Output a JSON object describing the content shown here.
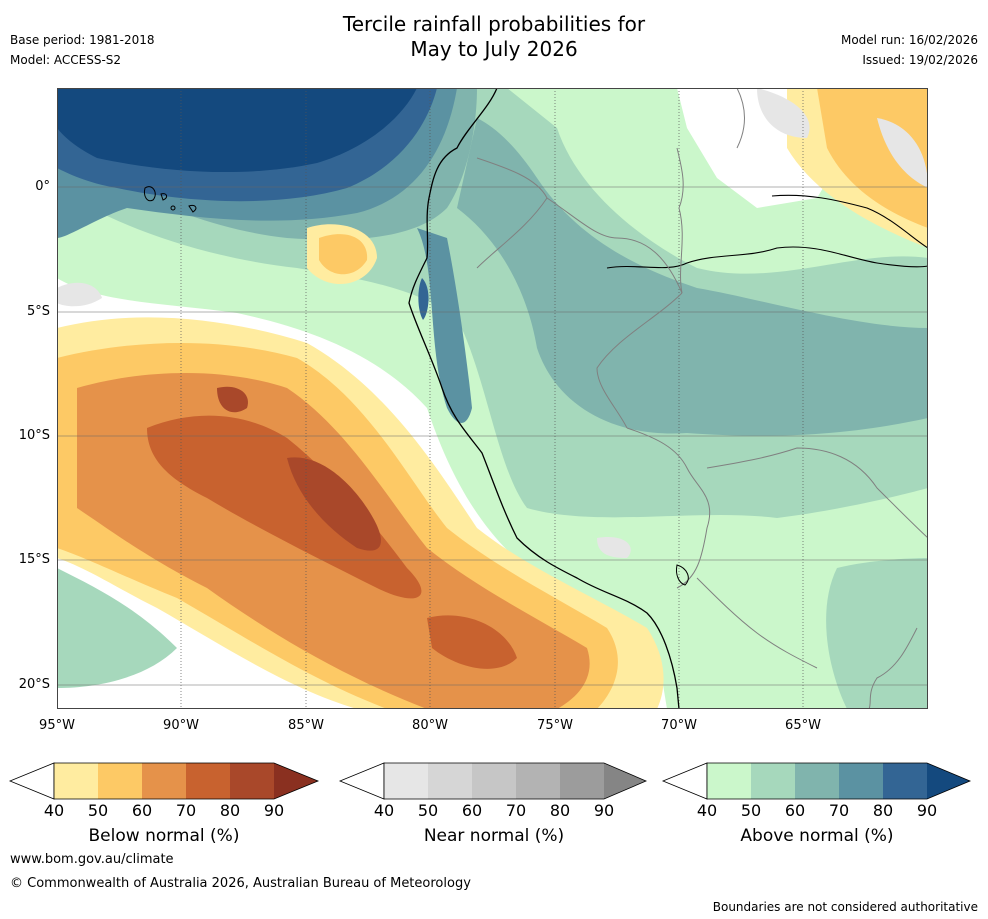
{
  "title_line1": "Tercile rainfall probabilities for",
  "title_line2": "May to July 2026",
  "base_period": "Base period: 1981-2018",
  "model": "Model: ACCESS-S2",
  "model_run": "Model run: 16/02/2026",
  "issued": "Issued: 19/02/2026",
  "lat_labels": [
    "0°",
    "5°S",
    "10°S",
    "15°S",
    "20°S"
  ],
  "lon_labels": [
    "95°W",
    "90°W",
    "85°W",
    "80°W",
    "75°W",
    "70°W",
    "65°W"
  ],
  "colorbars": [
    {
      "label": "Below normal (%)",
      "ticks": [
        "40",
        "50",
        "60",
        "70",
        "80",
        "90"
      ],
      "colors": [
        "#ffeca0",
        "#fdc965",
        "#e5924a",
        "#c8622f",
        "#a9482a",
        "#8a3020"
      ]
    },
    {
      "label": "Near normal (%)",
      "ticks": [
        "40",
        "50",
        "60",
        "70",
        "80",
        "90"
      ],
      "colors": [
        "#e6e6e6",
        "#d6d6d6",
        "#c6c6c6",
        "#b3b3b3",
        "#9c9c9c",
        "#858585"
      ]
    },
    {
      "label": "Above normal (%)",
      "ticks": [
        "40",
        "50",
        "60",
        "70",
        "80",
        "90"
      ],
      "colors": [
        "#cbf7cb",
        "#a6d8bc",
        "#80b4ad",
        "#5b92a2",
        "#336594",
        "#14497e"
      ]
    }
  ],
  "footer_url": "www.bom.gov.au/climate",
  "footer_copyright": "© Commonwealth of Australia 2026, Australian Bureau of Meteorology",
  "footer_disclaimer": "Boundaries are not considered authoritative"
}
